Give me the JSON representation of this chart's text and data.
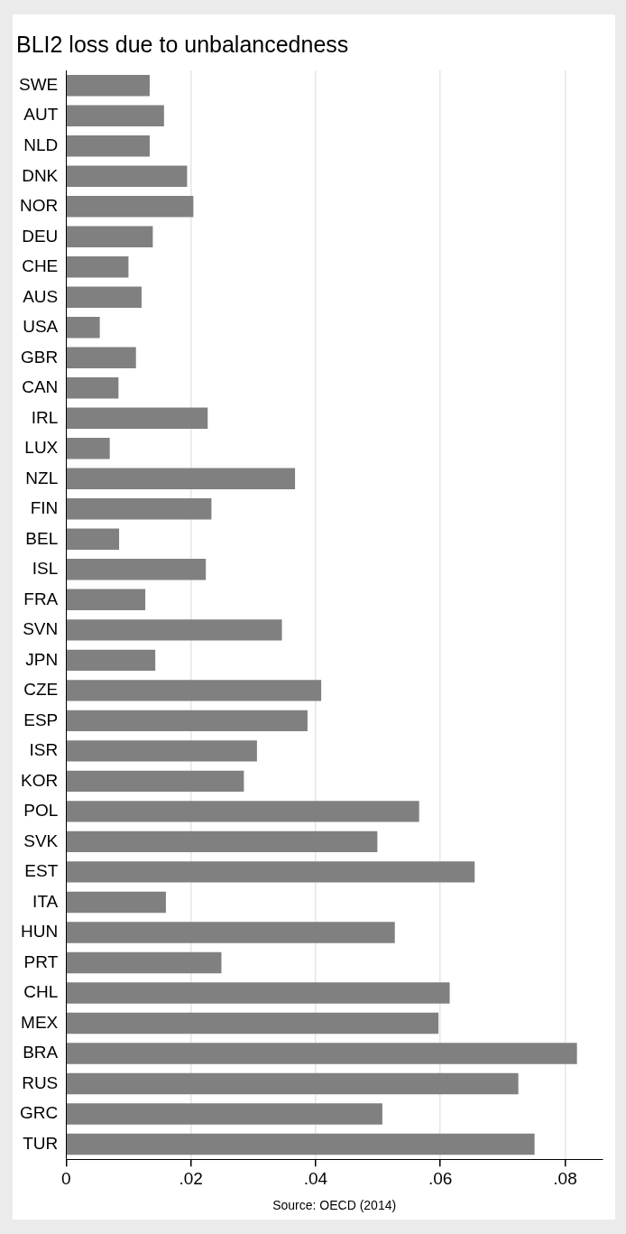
{
  "chart_data": {
    "type": "bar",
    "orientation": "horizontal",
    "title": "BLI2 loss due to unbalancedness",
    "categories": [
      "SWE",
      "AUT",
      "NLD",
      "DNK",
      "NOR",
      "DEU",
      "CHE",
      "AUS",
      "USA",
      "GBR",
      "CAN",
      "IRL",
      "LUX",
      "NZL",
      "FIN",
      "BEL",
      "ISL",
      "FRA",
      "SVN",
      "JPN",
      "CZE",
      "ESP",
      "ISR",
      "KOR",
      "POL",
      "SVK",
      "EST",
      "ITA",
      "HUN",
      "PRT",
      "CHL",
      "MEX",
      "BRA",
      "RUS",
      "GRC",
      "TUR"
    ],
    "values": [
      0.0134,
      0.0157,
      0.0134,
      0.0194,
      0.0204,
      0.0139,
      0.01,
      0.0121,
      0.0054,
      0.0112,
      0.0084,
      0.0227,
      0.007,
      0.0367,
      0.0233,
      0.0085,
      0.0224,
      0.0127,
      0.0346,
      0.0143,
      0.0409,
      0.0387,
      0.0306,
      0.0285,
      0.0566,
      0.0499,
      0.0655,
      0.016,
      0.0527,
      0.0249,
      0.0615,
      0.0597,
      0.0819,
      0.0725,
      0.0507,
      0.0751
    ],
    "color": "#808080",
    "xlim": [
      0,
      0.086
    ],
    "xticks": [
      0,
      {
        "value": 0.02,
        "label": ".02"
      },
      {
        "value": 0.04,
        "label": ".04"
      },
      {
        "value": 0.06,
        "label": ".06"
      },
      {
        "value": 0.08,
        "label": ".08"
      }
    ],
    "grid": "x",
    "annotations": [
      "Source: OECD (2014)"
    ]
  }
}
